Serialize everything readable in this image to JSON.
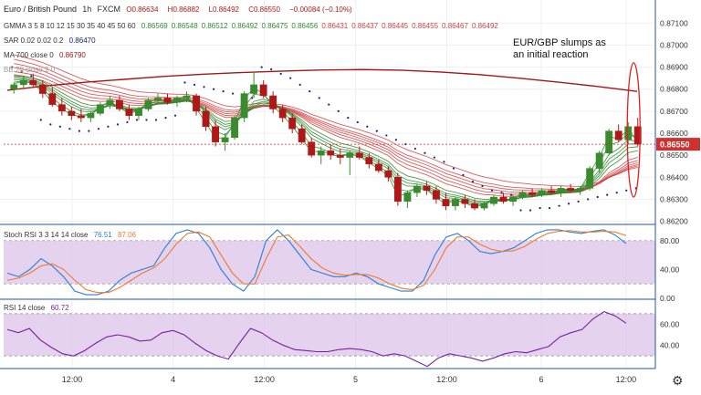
{
  "header": {
    "symbol_title": "Euro / British Pound",
    "interval": "1h",
    "source": "FXCM",
    "ohlc": {
      "o": "0.86634",
      "h": "0.86882",
      "l": "0.86492",
      "c": "0.86550",
      "chg": "−0.00084 (−0.10%)"
    },
    "gmma_label": "GMMA 3 5 8 10 12 15 30 35 40 45 50 60",
    "gmma_values": [
      "0.86569",
      "0.86548",
      "0.86512",
      "0.86492",
      "0.86475",
      "0.86456",
      "0.86431",
      "0.86437",
      "0.86445",
      "0.86455",
      "0.86467",
      "0.86492"
    ],
    "sar_label": "SAR 0.02 0.02 0.2",
    "sar_value": "0.86470",
    "ma_label": "MA 700 close 0",
    "ma_value": "0.86790",
    "bb_label": "BB 20 close 2 0"
  },
  "colors": {
    "up": "#3a8a2e",
    "down": "#b01818",
    "price_red": "#d32f2f",
    "gmma_short": "#2e8b2e",
    "gmma_long": "#d44040",
    "ma700": "#a01818",
    "sar": "#1a237e",
    "stoch_k": "#2b7fd4",
    "stoch_d": "#f07a2a",
    "rsi": "#7b1fa2",
    "band": "#d8bfe8"
  },
  "annotation": "EUR/GBP slumps as an initial reaction",
  "price_tag": "0.86550",
  "stoch_legend": {
    "label": "Stoch RSI 3 3 14 14 close",
    "k": "76.51",
    "d": "87.06"
  },
  "rsi_legend": {
    "label": "RSI 14 close",
    "value": "60.72"
  },
  "time_labels": [
    "12:00",
    "4",
    "12:00",
    "5",
    "12:00",
    "6",
    "12:00"
  ],
  "chart_data": [
    {
      "type": "candlestick",
      "title": "Euro / British Pound, 1h, FXCM",
      "ylim": [
        0.8619,
        0.8718
      ],
      "y_ticks": [
        "0.87100",
        "0.87000",
        "0.86900",
        "0.86800",
        "0.86700",
        "0.86600",
        "0.86500",
        "0.86400",
        "0.86300",
        "0.86200"
      ],
      "candles": [
        [
          0.868,
          0.8683,
          0.8678,
          0.8682
        ],
        [
          0.8682,
          0.8686,
          0.868,
          0.8684
        ],
        [
          0.8684,
          0.8687,
          0.8681,
          0.8682
        ],
        [
          0.8682,
          0.8684,
          0.8676,
          0.8678
        ],
        [
          0.8678,
          0.8681,
          0.8672,
          0.8673
        ],
        [
          0.8673,
          0.8676,
          0.8668,
          0.867
        ],
        [
          0.867,
          0.8672,
          0.8666,
          0.8668
        ],
        [
          0.8668,
          0.8671,
          0.8665,
          0.8667
        ],
        [
          0.8667,
          0.867,
          0.8665,
          0.8669
        ],
        [
          0.8669,
          0.8674,
          0.8668,
          0.8673
        ],
        [
          0.8673,
          0.8677,
          0.8671,
          0.8675
        ],
        [
          0.8675,
          0.8677,
          0.867,
          0.8671
        ],
        [
          0.8671,
          0.8673,
          0.8666,
          0.8668
        ],
        [
          0.8668,
          0.8672,
          0.8666,
          0.8671
        ],
        [
          0.8671,
          0.8676,
          0.867,
          0.8675
        ],
        [
          0.8675,
          0.8678,
          0.8673,
          0.8676
        ],
        [
          0.8676,
          0.8678,
          0.8673,
          0.8674
        ],
        [
          0.8674,
          0.8677,
          0.8672,
          0.8676
        ],
        [
          0.8676,
          0.8679,
          0.8674,
          0.8677
        ],
        [
          0.8677,
          0.8678,
          0.8668,
          0.867
        ],
        [
          0.867,
          0.8672,
          0.8661,
          0.8663
        ],
        [
          0.8663,
          0.8666,
          0.8654,
          0.8656
        ],
        [
          0.8656,
          0.866,
          0.8652,
          0.8658
        ],
        [
          0.8658,
          0.8668,
          0.8657,
          0.8667
        ],
        [
          0.8667,
          0.8679,
          0.8665,
          0.8678
        ],
        [
          0.8678,
          0.8688,
          0.8676,
          0.8682
        ],
        [
          0.8682,
          0.8684,
          0.8676,
          0.8677
        ],
        [
          0.8677,
          0.8679,
          0.8669,
          0.8671
        ],
        [
          0.8671,
          0.8673,
          0.8665,
          0.8667
        ],
        [
          0.8667,
          0.8669,
          0.866,
          0.8662
        ],
        [
          0.8662,
          0.8664,
          0.8655,
          0.8656
        ],
        [
          0.8656,
          0.8658,
          0.8649,
          0.865
        ],
        [
          0.865,
          0.8654,
          0.8646,
          0.8652
        ],
        [
          0.8652,
          0.8655,
          0.8648,
          0.865
        ],
        [
          0.865,
          0.8653,
          0.8646,
          0.8649
        ],
        [
          0.8649,
          0.8652,
          0.8641,
          0.8651
        ],
        [
          0.8651,
          0.8654,
          0.8648,
          0.8649
        ],
        [
          0.8649,
          0.8651,
          0.8644,
          0.8646
        ],
        [
          0.8646,
          0.8648,
          0.8642,
          0.8643
        ],
        [
          0.8643,
          0.8645,
          0.8638,
          0.864
        ],
        [
          0.864,
          0.8642,
          0.8627,
          0.8629
        ],
        [
          0.8629,
          0.8634,
          0.8626,
          0.8633
        ],
        [
          0.8633,
          0.8637,
          0.8631,
          0.8636
        ],
        [
          0.8636,
          0.8638,
          0.8632,
          0.8634
        ],
        [
          0.8634,
          0.8636,
          0.8628,
          0.863
        ],
        [
          0.863,
          0.8633,
          0.8625,
          0.8627
        ],
        [
          0.8627,
          0.8631,
          0.8625,
          0.863
        ],
        [
          0.863,
          0.8632,
          0.8626,
          0.8628
        ],
        [
          0.8628,
          0.863,
          0.8625,
          0.8626
        ],
        [
          0.8626,
          0.8629,
          0.8625,
          0.8628
        ],
        [
          0.8628,
          0.8632,
          0.8627,
          0.8631
        ],
        [
          0.8631,
          0.8633,
          0.8628,
          0.8629
        ],
        [
          0.8629,
          0.8632,
          0.8627,
          0.8631
        ],
        [
          0.8631,
          0.8634,
          0.863,
          0.8633
        ],
        [
          0.8633,
          0.8635,
          0.8631,
          0.8632
        ],
        [
          0.8632,
          0.8635,
          0.8631,
          0.8634
        ],
        [
          0.8634,
          0.8636,
          0.8632,
          0.8633
        ],
        [
          0.8633,
          0.8636,
          0.8631,
          0.8635
        ],
        [
          0.8635,
          0.8637,
          0.8633,
          0.8634
        ],
        [
          0.8634,
          0.8636,
          0.8632,
          0.8635
        ],
        [
          0.8635,
          0.8645,
          0.8634,
          0.8644
        ],
        [
          0.8644,
          0.8652,
          0.8642,
          0.8651
        ],
        [
          0.8651,
          0.8662,
          0.865,
          0.8661
        ],
        [
          0.8661,
          0.8664,
          0.8656,
          0.8657
        ],
        [
          0.8657,
          0.8665,
          0.8655,
          0.8663
        ],
        [
          0.8663,
          0.8667,
          0.8654,
          0.8655
        ]
      ],
      "ma700": [
        0.86795,
        0.86815,
        0.86832,
        0.86845,
        0.86858,
        0.86868,
        0.86876,
        0.86882,
        0.86887,
        0.86889,
        0.86886,
        0.86878,
        0.86866,
        0.8685,
        0.86832,
        0.86812,
        0.8679
      ],
      "sar_dots": [
        0.869,
        0.8688,
        0.8686,
        0.8666,
        0.8664,
        0.8663,
        0.8662,
        0.8661,
        0.8661,
        0.8662,
        0.8663,
        0.8664,
        0.8665,
        0.8666,
        0.8666,
        0.8666,
        0.8667,
        0.8668,
        0.8683,
        0.8682,
        0.8681,
        0.868,
        0.8679,
        0.8678,
        0.8677,
        0.8676,
        0.869,
        0.8689,
        0.8687,
        0.8685,
        0.8682,
        0.8679,
        0.8676,
        0.8673,
        0.867,
        0.8667,
        0.8665,
        0.8663,
        0.8661,
        0.8659,
        0.8657,
        0.8655,
        0.8653,
        0.8651,
        0.8649,
        0.8647,
        0.8644,
        0.8641,
        0.8638,
        0.8636,
        0.8634,
        0.8633,
        0.8632,
        0.8625,
        0.8625,
        0.8626,
        0.8626,
        0.8627,
        0.8628,
        0.8629,
        0.863,
        0.8631,
        0.8632,
        0.8633,
        0.8634,
        0.8635
      ]
    },
    {
      "type": "line",
      "title": "Stoch RSI 3 3 14 14 close",
      "ylim": [
        0,
        100
      ],
      "y_ticks": [
        "80.00",
        "40.00",
        "0.00"
      ],
      "band": [
        20,
        80
      ],
      "series": [
        {
          "name": "K",
          "values": [
            35,
            30,
            40,
            55,
            45,
            30,
            10,
            5,
            5,
            10,
            25,
            35,
            40,
            45,
            70,
            90,
            95,
            90,
            70,
            40,
            20,
            10,
            30,
            80,
            95,
            80,
            60,
            40,
            35,
            30,
            30,
            35,
            30,
            20,
            15,
            10,
            10,
            25,
            60,
            85,
            90,
            80,
            65,
            62,
            65,
            70,
            80,
            90,
            95,
            95,
            92,
            90,
            93,
            95,
            88,
            76
          ]
        },
        {
          "name": "D",
          "values": [
            25,
            28,
            35,
            45,
            48,
            40,
            25,
            12,
            8,
            8,
            15,
            25,
            35,
            42,
            55,
            75,
            90,
            92,
            85,
            60,
            35,
            20,
            20,
            55,
            85,
            88,
            72,
            55,
            42,
            35,
            32,
            33,
            33,
            28,
            20,
            14,
            12,
            18,
            40,
            70,
            85,
            85,
            75,
            68,
            65,
            66,
            72,
            82,
            90,
            93,
            94,
            92,
            92,
            93,
            92,
            87
          ]
        }
      ]
    },
    {
      "type": "line",
      "title": "RSI 14 close",
      "ylim": [
        18,
        82
      ],
      "y_ticks": [
        "60.00",
        "40.00"
      ],
      "band": [
        30,
        70
      ],
      "series": [
        {
          "name": "RSI",
          "values": [
            55,
            52,
            56,
            45,
            38,
            32,
            30,
            35,
            42,
            48,
            50,
            48,
            44,
            45,
            52,
            54,
            50,
            42,
            35,
            30,
            27,
            42,
            56,
            52,
            45,
            40,
            36,
            35,
            34,
            34,
            36,
            37,
            36,
            34,
            30,
            32,
            30,
            25,
            20,
            28,
            32,
            30,
            28,
            25,
            28,
            32,
            34,
            33,
            36,
            39,
            48,
            52,
            55,
            65,
            72,
            68,
            61
          ]
        }
      ]
    }
  ]
}
